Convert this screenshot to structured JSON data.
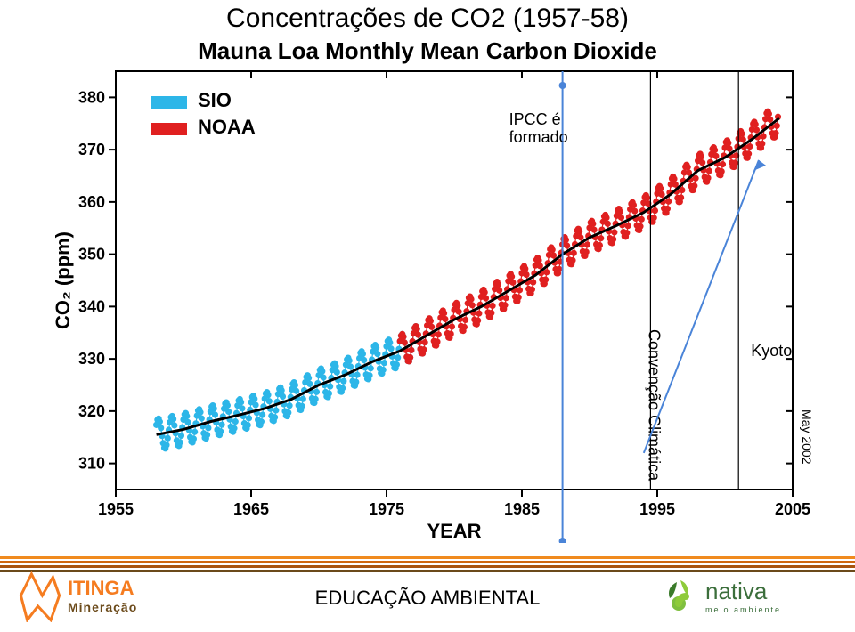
{
  "page_title": "Concentrações de CO2 (1957-58)",
  "chart": {
    "type": "line",
    "title": "Mauna Loa Monthly Mean Carbon Dioxide",
    "title_fontsize": 26,
    "ylabel": "CO₂ (ppm)",
    "xlabel": "YEAR",
    "label_fontsize": 22,
    "background_color": "#ffffff",
    "axis_color": "#000000",
    "xlim": [
      1955,
      2005
    ],
    "ylim": [
      305,
      385
    ],
    "xtick_step": 10,
    "ytick_step": 10,
    "marker_size": 3,
    "line_width": 3,
    "trend_color": "#000000",
    "legend": [
      {
        "label": "SIO",
        "color": "#2db6e8"
      },
      {
        "label": "NOAA",
        "color": "#e02020"
      }
    ],
    "series": {
      "sio": {
        "color": "#2db6e8",
        "year_range": [
          1958,
          1978
        ]
      },
      "noaa": {
        "color": "#e02020",
        "year_range": [
          1976,
          2004
        ]
      }
    },
    "trend_points": [
      [
        1958,
        315.5
      ],
      [
        1960,
        316.5
      ],
      [
        1962,
        318.0
      ],
      [
        1964,
        319.2
      ],
      [
        1966,
        320.5
      ],
      [
        1968,
        322.3
      ],
      [
        1970,
        325.0
      ],
      [
        1972,
        327.0
      ],
      [
        1974,
        329.5
      ],
      [
        1976,
        331.5
      ],
      [
        1978,
        334.5
      ],
      [
        1980,
        337.5
      ],
      [
        1982,
        340.0
      ],
      [
        1984,
        343.0
      ],
      [
        1986,
        346.0
      ],
      [
        1988,
        350.0
      ],
      [
        1990,
        353.2
      ],
      [
        1992,
        355.5
      ],
      [
        1994,
        358.0
      ],
      [
        1996,
        361.5
      ],
      [
        1998,
        366.0
      ],
      [
        2000,
        368.5
      ],
      [
        2002,
        372.0
      ],
      [
        2004,
        376.0
      ]
    ],
    "seasonal_amplitude": 3.0,
    "annotations": {
      "ipcc": {
        "label": "IPCC é\nformado",
        "year": 1988
      },
      "convencao": {
        "label": "Convenção Climática",
        "year": 1994.5
      },
      "kyoto": {
        "label": "Kyoto",
        "year": 2001
      }
    },
    "may_label": "May 2002"
  },
  "footer": {
    "text": "EDUCAÇÃO AMBIENTAL",
    "stripe_colors": [
      "#f08a1e",
      "#d06810",
      "#a85410",
      "#6b4a1a"
    ],
    "logo_left": {
      "name1": "ITINGA",
      "name2": "Mineração",
      "color_primary": "#f57c20",
      "color_secondary": "#6b4a1a"
    },
    "logo_right": {
      "name1": "nativa",
      "name2": "meio ambiente",
      "color": "#3b6e3b",
      "leaf_light": "#8ecb3a",
      "leaf_dark": "#3a7a2a"
    }
  }
}
